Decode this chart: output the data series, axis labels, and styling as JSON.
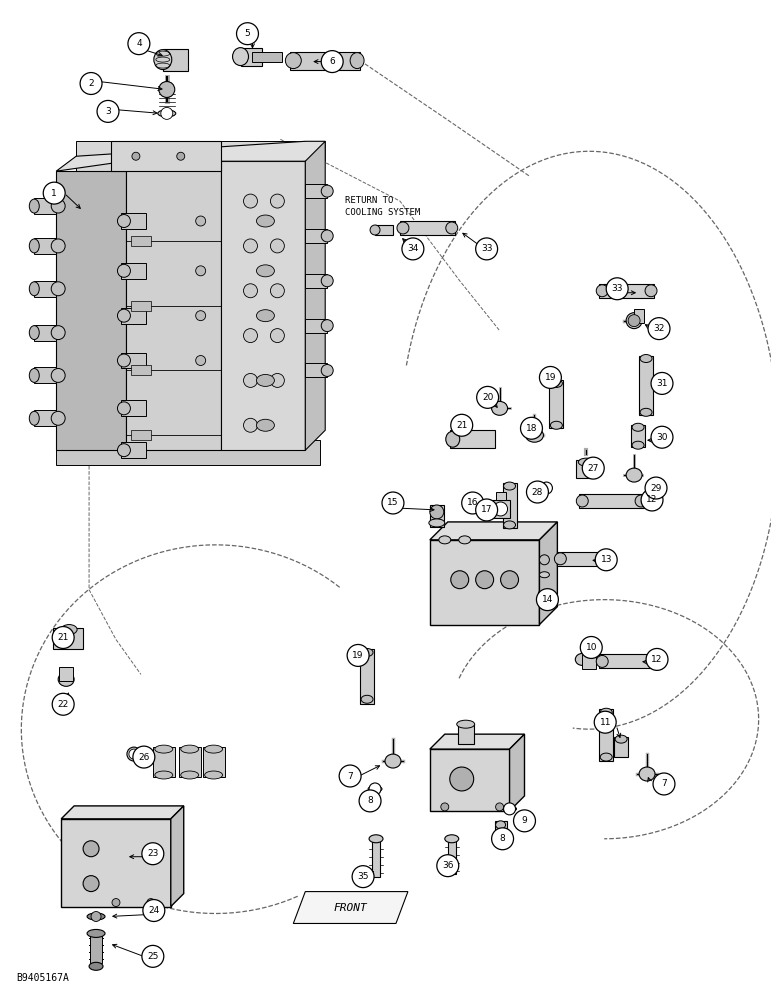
{
  "background_color": "#ffffff",
  "image_code": "B9405167A",
  "return_to_cooling": "RETURN TO\nCOOLING SYSTEM",
  "front_label": "FRONT",
  "line_color": "#1a1a1a",
  "gray_light": "#d0d0d0",
  "gray_mid": "#b0b0b0",
  "gray_dark": "#808080",
  "dashed_color": "#555555",
  "label_circles": [
    [
      "1",
      53,
      192
    ],
    [
      "2",
      90,
      82
    ],
    [
      "3",
      107,
      110
    ],
    [
      "4",
      138,
      42
    ],
    [
      "5",
      247,
      32
    ],
    [
      "6",
      332,
      60
    ],
    [
      "7",
      350,
      777
    ],
    [
      "7",
      665,
      785
    ],
    [
      "8",
      370,
      802
    ],
    [
      "8",
      503,
      840
    ],
    [
      "9",
      525,
      822
    ],
    [
      "10",
      592,
      648
    ],
    [
      "11",
      606,
      723
    ],
    [
      "12",
      658,
      660
    ],
    [
      "12",
      653,
      500
    ],
    [
      "13",
      607,
      560
    ],
    [
      "14",
      548,
      600
    ],
    [
      "15",
      393,
      503
    ],
    [
      "16",
      473,
      503
    ],
    [
      "17",
      487,
      510
    ],
    [
      "18",
      532,
      428
    ],
    [
      "19",
      551,
      377
    ],
    [
      "19",
      358,
      656
    ],
    [
      "20",
      488,
      397
    ],
    [
      "21",
      62,
      638
    ],
    [
      "21",
      462,
      425
    ],
    [
      "22",
      62,
      705
    ],
    [
      "23",
      152,
      855
    ],
    [
      "24",
      153,
      912
    ],
    [
      "25",
      152,
      958
    ],
    [
      "26",
      143,
      758
    ],
    [
      "27",
      594,
      468
    ],
    [
      "28",
      538,
      492
    ],
    [
      "29",
      657,
      488
    ],
    [
      "30",
      663,
      437
    ],
    [
      "31",
      663,
      383
    ],
    [
      "32",
      660,
      328
    ],
    [
      "33",
      487,
      248
    ],
    [
      "33",
      618,
      288
    ],
    [
      "34",
      413,
      248
    ],
    [
      "35",
      363,
      878
    ],
    [
      "36",
      448,
      867
    ]
  ]
}
